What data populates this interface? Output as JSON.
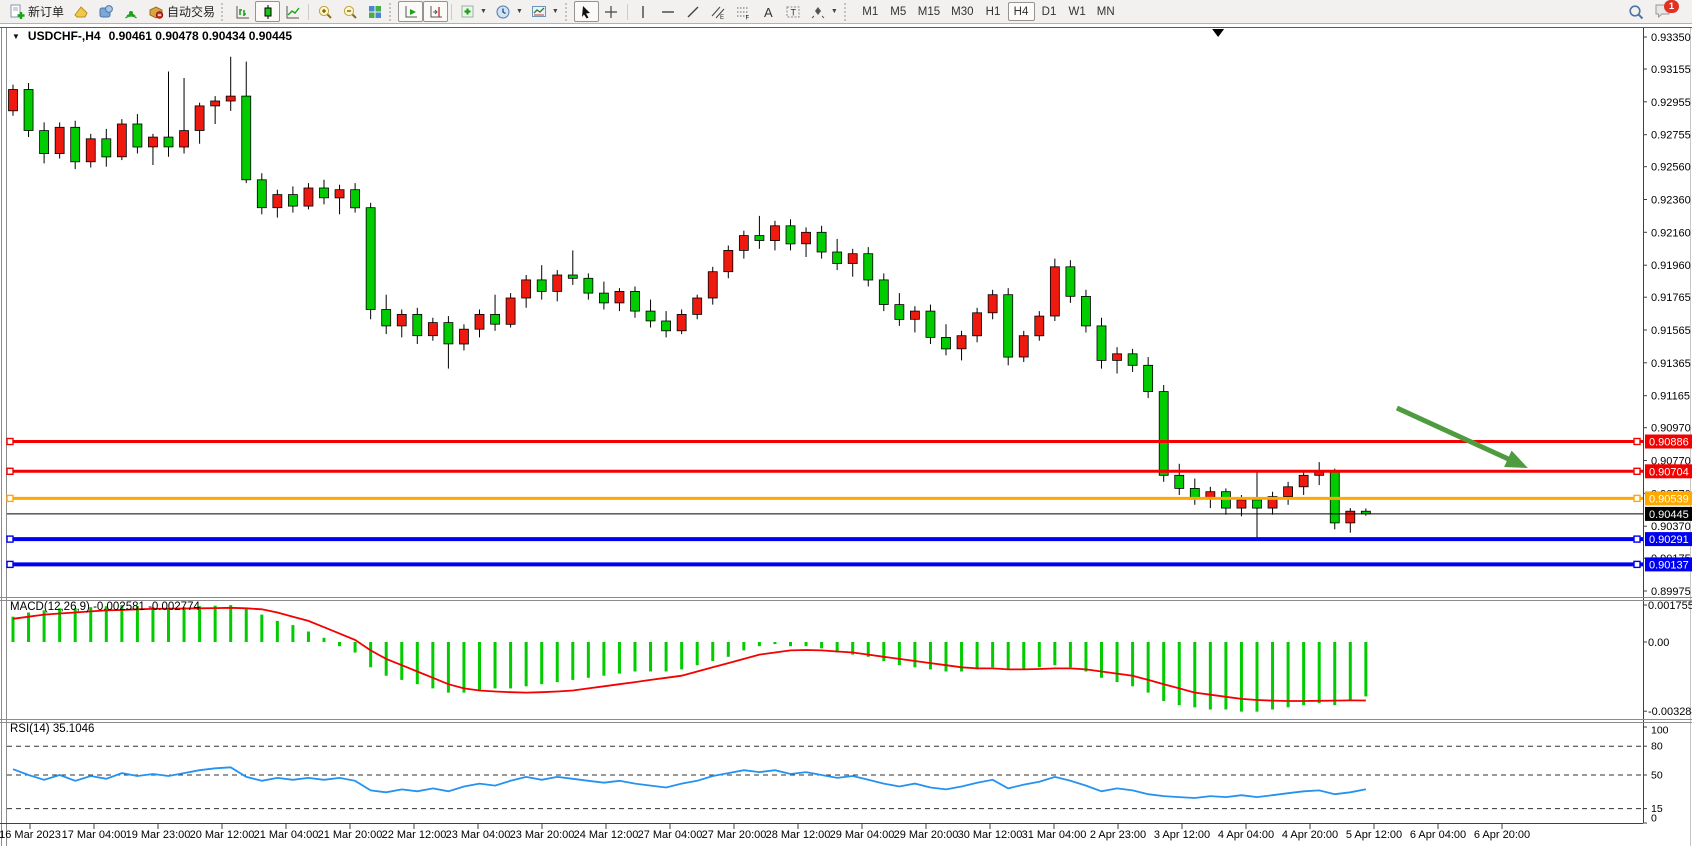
{
  "toolbar": {
    "new_order_label": "新订单",
    "auto_trading_label": "自动交易",
    "timeframes": [
      "M1",
      "M5",
      "M15",
      "M30",
      "H1",
      "H4",
      "D1",
      "W1",
      "MN"
    ],
    "active_timeframe": "H4",
    "notification_badge": "1"
  },
  "chart": {
    "symbol": "USDCHF-",
    "period": "H4",
    "title": "USDCHF-,H4",
    "ohlc_text": "0.90461 0.90478 0.90434 0.90445",
    "open": "0.90461",
    "high": "0.90478",
    "low": "0.90434",
    "close": "0.90445"
  },
  "chart_data": {
    "type": "candlestick",
    "symbol": "USDCHF-",
    "timeframe": "H4",
    "up_color": "#ee1a10",
    "down_color": "#00cc00",
    "wick_color": "#000000",
    "background": "#ffffff",
    "y_axis_ticks": [
      "0.93350",
      "0.93155",
      "0.92955",
      "0.92755",
      "0.92560",
      "0.92360",
      "0.92160",
      "0.91960",
      "0.91765",
      "0.91565",
      "0.91365",
      "0.91165",
      "0.90970",
      "0.90770",
      "0.90570",
      "0.90370",
      "0.90175",
      "0.89975"
    ],
    "x_labels": [
      "16 Mar 2023",
      "17 Mar 04:00",
      "19 Mar 23:00",
      "20 Mar 12:00",
      "21 Mar 04:00",
      "21 Mar 20:00",
      "22 Mar 12:00",
      "23 Mar 04:00",
      "23 Mar 20:00",
      "24 Mar 12:00",
      "27 Mar 04:00",
      "27 Mar 20:00",
      "28 Mar 12:00",
      "29 Mar 04:00",
      "29 Mar 20:00",
      "30 Mar 12:00",
      "31 Mar 04:00",
      "2 Apr 23:00",
      "3 Apr 12:00",
      "4 Apr 04:00",
      "4 Apr 20:00",
      "5 Apr 12:00",
      "6 Apr 04:00",
      "6 Apr 20:00"
    ],
    "candles": [
      [
        0.929,
        0.9306,
        0.9287,
        0.9303
      ],
      [
        0.9303,
        0.9307,
        0.9274,
        0.9278
      ],
      [
        0.9278,
        0.9283,
        0.9258,
        0.9264
      ],
      [
        0.9264,
        0.9283,
        0.9261,
        0.928
      ],
      [
        0.928,
        0.9284,
        0.92545,
        0.9259
      ],
      [
        0.9259,
        0.9276,
        0.92555,
        0.9273
      ],
      [
        0.9273,
        0.9279,
        0.9256,
        0.9262
      ],
      [
        0.9262,
        0.9285,
        0.926,
        0.9282
      ],
      [
        0.9282,
        0.9288,
        0.9264,
        0.9268
      ],
      [
        0.9268,
        0.9276,
        0.9257,
        0.9274
      ],
      [
        0.9274,
        0.9314,
        0.9262,
        0.9268
      ],
      [
        0.9268,
        0.931,
        0.9264,
        0.9278
      ],
      [
        0.9278,
        0.9295,
        0.927,
        0.9293
      ],
      [
        0.9293,
        0.9299,
        0.9282,
        0.9296
      ],
      [
        0.9296,
        0.9323,
        0.929,
        0.9299
      ],
      [
        0.9299,
        0.932,
        0.9246,
        0.9248
      ],
      [
        0.9248,
        0.9252,
        0.9227,
        0.9231
      ],
      [
        0.9231,
        0.9242,
        0.9225,
        0.9239
      ],
      [
        0.9239,
        0.9244,
        0.9228,
        0.9232
      ],
      [
        0.9232,
        0.9246,
        0.923,
        0.9243
      ],
      [
        0.9243,
        0.9248,
        0.9233,
        0.9237
      ],
      [
        0.9237,
        0.9245,
        0.9227,
        0.9242
      ],
      [
        0.9242,
        0.9246,
        0.9228,
        0.9231
      ],
      [
        0.9231,
        0.9234,
        0.9163,
        0.9169
      ],
      [
        0.9169,
        0.9178,
        0.9154,
        0.9159
      ],
      [
        0.9159,
        0.9169,
        0.9152,
        0.9166
      ],
      [
        0.9166,
        0.917,
        0.9148,
        0.9153
      ],
      [
        0.9153,
        0.9164,
        0.915,
        0.9161
      ],
      [
        0.9161,
        0.9165,
        0.9133,
        0.9148
      ],
      [
        0.9148,
        0.916,
        0.9144,
        0.9157
      ],
      [
        0.9157,
        0.9169,
        0.9152,
        0.9166
      ],
      [
        0.9166,
        0.9178,
        0.9156,
        0.916
      ],
      [
        0.916,
        0.9179,
        0.9158,
        0.9176
      ],
      [
        0.9176,
        0.919,
        0.917,
        0.9187
      ],
      [
        0.9187,
        0.9196,
        0.9175,
        0.918
      ],
      [
        0.918,
        0.9193,
        0.9174,
        0.919
      ],
      [
        0.919,
        0.9205,
        0.9184,
        0.9188
      ],
      [
        0.9188,
        0.9191,
        0.9175,
        0.9179
      ],
      [
        0.9179,
        0.9186,
        0.9169,
        0.9173
      ],
      [
        0.9173,
        0.9182,
        0.9168,
        0.918
      ],
      [
        0.918,
        0.9183,
        0.9164,
        0.9168
      ],
      [
        0.9168,
        0.9175,
        0.9158,
        0.9162
      ],
      [
        0.9162,
        0.9168,
        0.9152,
        0.9156
      ],
      [
        0.9156,
        0.9169,
        0.9154,
        0.9166
      ],
      [
        0.9166,
        0.9178,
        0.9163,
        0.9176
      ],
      [
        0.9176,
        0.9195,
        0.9172,
        0.9192
      ],
      [
        0.9192,
        0.9208,
        0.9188,
        0.9205
      ],
      [
        0.9205,
        0.9217,
        0.92,
        0.9214
      ],
      [
        0.9214,
        0.9226,
        0.9206,
        0.9211
      ],
      [
        0.9211,
        0.9223,
        0.9205,
        0.922
      ],
      [
        0.922,
        0.9224,
        0.9205,
        0.9209
      ],
      [
        0.9209,
        0.9219,
        0.9201,
        0.9216
      ],
      [
        0.9216,
        0.922,
        0.92,
        0.9204
      ],
      [
        0.9204,
        0.9212,
        0.9193,
        0.9197
      ],
      [
        0.9197,
        0.9206,
        0.9189,
        0.9203
      ],
      [
        0.9203,
        0.9207,
        0.9183,
        0.9187
      ],
      [
        0.9187,
        0.9191,
        0.9168,
        0.9172
      ],
      [
        0.9172,
        0.9179,
        0.9159,
        0.9163
      ],
      [
        0.9163,
        0.9171,
        0.9155,
        0.9168
      ],
      [
        0.9168,
        0.9172,
        0.9148,
        0.9152
      ],
      [
        0.9152,
        0.916,
        0.9141,
        0.9145
      ],
      [
        0.9145,
        0.9156,
        0.9138,
        0.9153
      ],
      [
        0.9153,
        0.917,
        0.9149,
        0.9167
      ],
      [
        0.9167,
        0.9181,
        0.9163,
        0.9178
      ],
      [
        0.9178,
        0.9182,
        0.9135,
        0.914
      ],
      [
        0.914,
        0.9156,
        0.9137,
        0.9153
      ],
      [
        0.9153,
        0.9168,
        0.915,
        0.9165
      ],
      [
        0.9165,
        0.92,
        0.9162,
        0.9195
      ],
      [
        0.9195,
        0.9199,
        0.9173,
        0.9177
      ],
      [
        0.9177,
        0.9181,
        0.9155,
        0.9159
      ],
      [
        0.9159,
        0.9164,
        0.9133,
        0.9138
      ],
      [
        0.9138,
        0.9146,
        0.913,
        0.9142
      ],
      [
        0.9142,
        0.9145,
        0.9131,
        0.9135
      ],
      [
        0.9135,
        0.914,
        0.9115,
        0.9119
      ],
      [
        0.9119,
        0.9123,
        0.9064,
        0.9068
      ],
      [
        0.9068,
        0.9075,
        0.9056,
        0.906
      ],
      [
        0.906,
        0.9066,
        0.905,
        0.9054
      ],
      [
        0.9054,
        0.9061,
        0.9048,
        0.9058
      ],
      [
        0.9058,
        0.906,
        0.9044,
        0.9048
      ],
      [
        0.9048,
        0.9056,
        0.9043,
        0.9053
      ],
      [
        0.9053,
        0.907,
        0.9029,
        0.9048
      ],
      [
        0.9048,
        0.9058,
        0.9044,
        0.9055
      ],
      [
        0.9055,
        0.9064,
        0.905,
        0.9061
      ],
      [
        0.9061,
        0.9071,
        0.9056,
        0.9068
      ],
      [
        0.9068,
        0.9076,
        0.9062,
        0.907
      ],
      [
        0.907,
        0.9072,
        0.9035,
        0.9039
      ],
      [
        0.9039,
        0.9048,
        0.9033,
        0.90461
      ],
      [
        0.90461,
        0.90478,
        0.90434,
        0.90445
      ]
    ],
    "price_lines": [
      {
        "price": 0.90886,
        "label": "0.90886",
        "color": "#f40000",
        "width": 3
      },
      {
        "price": 0.90704,
        "label": "0.90704",
        "color": "#f40000",
        "width": 3
      },
      {
        "price": 0.90539,
        "label": "0.90539",
        "color": "#ffa800",
        "width": 3
      },
      {
        "price": 0.90445,
        "label": "0.90445",
        "color": "#000000",
        "width": 1,
        "current": true
      },
      {
        "price": 0.90291,
        "label": "0.90291",
        "color": "#0000f0",
        "width": 4
      },
      {
        "price": 0.90137,
        "label": "0.90137",
        "color": "#0000f0",
        "width": 4
      }
    ],
    "annotations": [
      {
        "type": "trend-arrow",
        "color": "#4f9b3f",
        "from_bar": 89,
        "from_price": 0.9109,
        "to_bar": 96.6,
        "to_price": 0.9076
      },
      {
        "type": "top-marker",
        "bar": 77.5,
        "color": "#000000"
      }
    ],
    "macd": {
      "label": "MACD(12,26,9) -0.002581 -0.002774",
      "params": "12,26,9",
      "main_value": -0.002581,
      "signal_value": -0.002774,
      "axis_labels": [
        "0.001755",
        "0.00",
        "-0.003284"
      ],
      "histogram_color": "#00cc00",
      "signal_color": "#f40000",
      "histogram": [
        0.0012,
        0.0014,
        0.0015,
        0.0016,
        0.0016,
        0.00165,
        0.0017,
        0.00175,
        0.0017,
        0.00165,
        0.0016,
        0.00165,
        0.0017,
        0.00172,
        0.00175,
        0.0016,
        0.0013,
        0.001,
        0.0008,
        0.0005,
        0.0002,
        -0.0002,
        -0.0005,
        -0.0012,
        -0.0016,
        -0.0018,
        -0.002,
        -0.0022,
        -0.0024,
        -0.0024,
        -0.0023,
        -0.0022,
        -0.0022,
        -0.0021,
        -0.002,
        -0.0019,
        -0.0018,
        -0.0017,
        -0.0016,
        -0.0015,
        -0.0014,
        -0.0014,
        -0.0014,
        -0.0013,
        -0.0011,
        -0.0009,
        -0.0007,
        -0.0004,
        -0.0002,
        -0.0001,
        -0.0002,
        -0.0002,
        -0.0003,
        -0.0005,
        -0.0006,
        -0.0007,
        -0.0009,
        -0.0011,
        -0.0012,
        -0.0013,
        -0.0014,
        -0.0014,
        -0.0013,
        -0.0012,
        -0.0013,
        -0.0013,
        -0.0012,
        -0.0011,
        -0.0012,
        -0.0014,
        -0.0017,
        -0.0019,
        -0.0021,
        -0.0024,
        -0.0028,
        -0.003,
        -0.0031,
        -0.0032,
        -0.0032,
        -0.0033,
        -0.0033,
        -0.0032,
        -0.0031,
        -0.003,
        -0.0029,
        -0.003,
        -0.0028,
        -0.002581
      ],
      "signal": [
        0.0011,
        0.0012,
        0.0013,
        0.00135,
        0.0014,
        0.00145,
        0.0015,
        0.00152,
        0.00155,
        0.00157,
        0.00158,
        0.00159,
        0.0016,
        0.00161,
        0.00162,
        0.0016,
        0.00155,
        0.0014,
        0.0012,
        0.001,
        0.0007,
        0.0004,
        0.0001,
        -0.0004,
        -0.0008,
        -0.0011,
        -0.0014,
        -0.0017,
        -0.002,
        -0.0022,
        -0.0023,
        -0.00235,
        -0.00238,
        -0.0024,
        -0.00238,
        -0.00235,
        -0.0023,
        -0.0022,
        -0.0021,
        -0.002,
        -0.0019,
        -0.0018,
        -0.0017,
        -0.0016,
        -0.0014,
        -0.0012,
        -0.001,
        -0.0008,
        -0.0006,
        -0.0005,
        -0.0004,
        -0.00038,
        -0.0004,
        -0.00045,
        -0.0005,
        -0.0006,
        -0.0007,
        -0.0008,
        -0.0009,
        -0.001,
        -0.0011,
        -0.0012,
        -0.00125,
        -0.00125,
        -0.0013,
        -0.0013,
        -0.00128,
        -0.00125,
        -0.00125,
        -0.0013,
        -0.0014,
        -0.0015,
        -0.0016,
        -0.0018,
        -0.002,
        -0.0022,
        -0.0024,
        -0.0025,
        -0.0026,
        -0.0027,
        -0.00275,
        -0.00278,
        -0.0028,
        -0.0028,
        -0.00279,
        -0.00278,
        -0.00277,
        -0.002774
      ]
    },
    "rsi": {
      "label": "RSI(14) 35.1046",
      "period": 14,
      "value": 35.1046,
      "levels": [
        80,
        50,
        15
      ],
      "axis_labels": [
        "100",
        "80",
        "50",
        "15",
        "0"
      ],
      "line_color": "#2492f0",
      "values": [
        56,
        50,
        45,
        50,
        44,
        49,
        46,
        52,
        49,
        51,
        49,
        52,
        55,
        57,
        58,
        48,
        44,
        47,
        45,
        47,
        45,
        47,
        44,
        34,
        32,
        35,
        33,
        36,
        33,
        38,
        41,
        39,
        44,
        48,
        45,
        48,
        46,
        44,
        42,
        44,
        41,
        39,
        37,
        41,
        44,
        49,
        52,
        55,
        53,
        55,
        51,
        53,
        50,
        47,
        49,
        45,
        41,
        38,
        41,
        37,
        35,
        38,
        42,
        45,
        36,
        40,
        43,
        48,
        44,
        39,
        33,
        36,
        34,
        30,
        28,
        27,
        26,
        28,
        27,
        29,
        27,
        29,
        31,
        33,
        34,
        30,
        32,
        35.1
      ]
    }
  }
}
